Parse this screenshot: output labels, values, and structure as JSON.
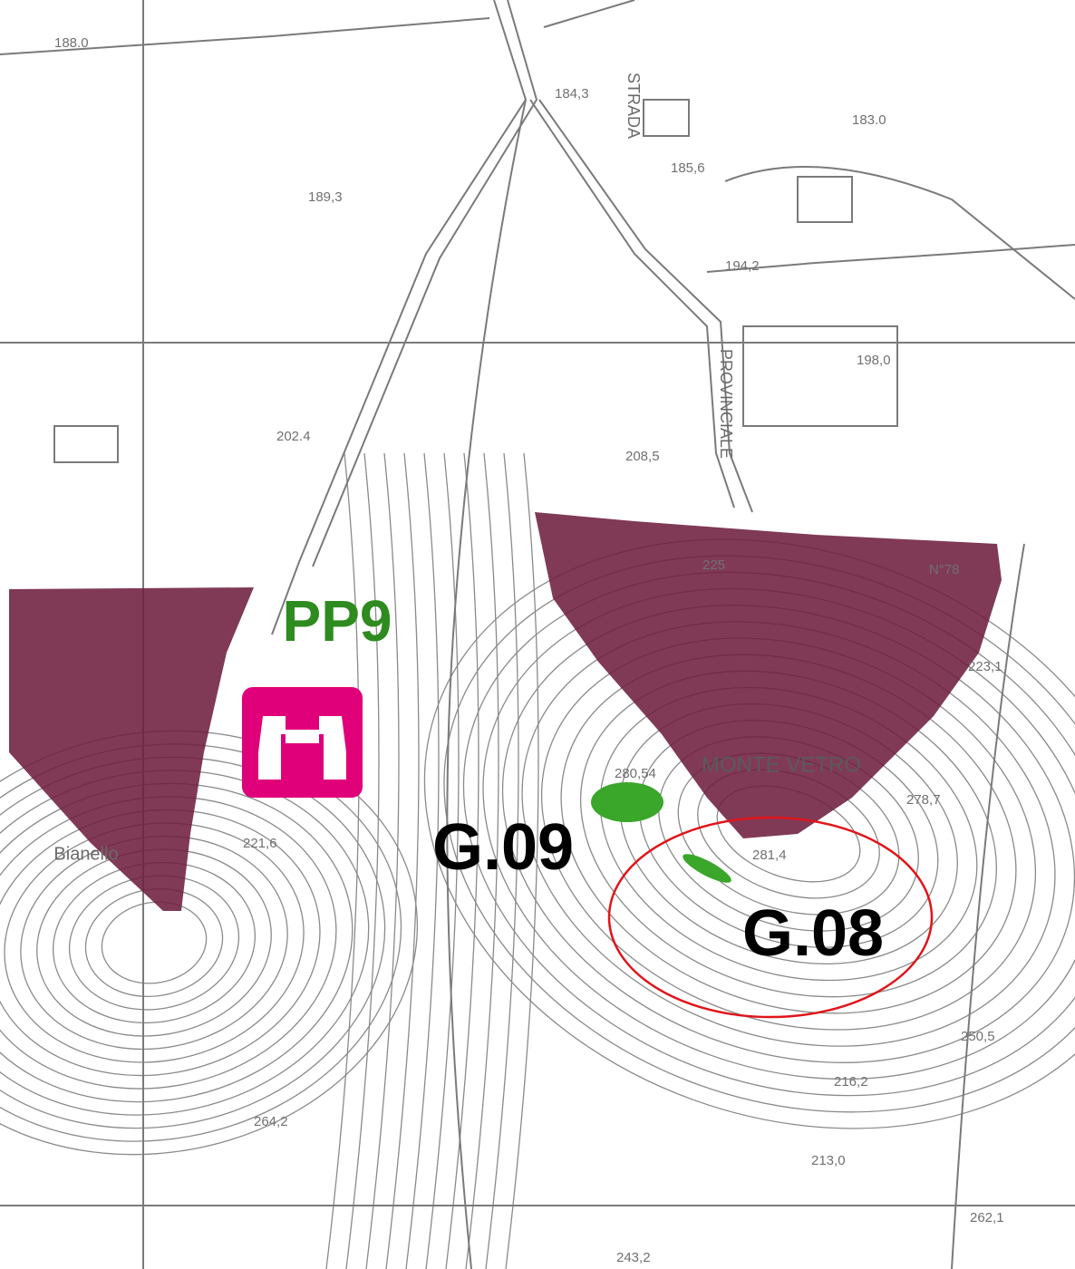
{
  "map": {
    "labels": [
      "PP9",
      "G.09",
      "G.08",
      "MONTE VETRO",
      "Bianello",
      "STRADA",
      "PROVINCIALE"
    ],
    "elevations": [
      "188.0",
      "184,3",
      "183.0",
      "185,6",
      "189,3",
      "194,2",
      "198,0",
      "202.4",
      "208,5",
      "225",
      "N°78",
      "223,1",
      "278,7",
      "281,4",
      "280,54",
      "221,6",
      "250,5",
      "216,2",
      "213,0",
      "264,2",
      "262,1",
      "243,2"
    ]
  }
}
